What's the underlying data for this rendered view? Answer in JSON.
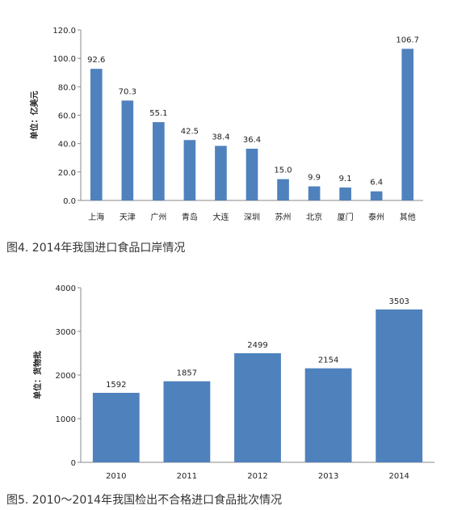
{
  "colors": {
    "bar": "#4f81bd",
    "axis": "#888888",
    "text": "#222222"
  },
  "chart_data": [
    {
      "type": "bar",
      "caption": "图4. 2014年我国进口食品口岸情况",
      "ylabel": "单位：亿美元",
      "ylim": [
        0,
        120
      ],
      "yticks": [
        "0.0",
        "20.0",
        "40.0",
        "60.0",
        "80.0",
        "100.0",
        "120.0"
      ],
      "grid": false,
      "categories": [
        "上海",
        "天津",
        "广州",
        "青岛",
        "大连",
        "深圳",
        "苏州",
        "北京",
        "厦门",
        "泰州",
        "其他"
      ],
      "values": [
        92.6,
        70.3,
        55.1,
        42.5,
        38.4,
        36.4,
        15.0,
        9.9,
        9.1,
        6.4,
        106.7
      ],
      "value_labels": [
        "92.6",
        "70.3",
        "55.1",
        "42.5",
        "38.4",
        "36.4",
        "15.0",
        "9.9",
        "9.1",
        "6.4",
        "106.7"
      ]
    },
    {
      "type": "bar",
      "caption": "图5. 2010～2014年我国检出不合格进口食品批次情况",
      "ylabel": "单位：货物批",
      "ylim": [
        0,
        4000
      ],
      "yticks": [
        "0",
        "1000",
        "2000",
        "3000",
        "4000"
      ],
      "grid": false,
      "categories": [
        "2010",
        "2011",
        "2012",
        "2013",
        "2014"
      ],
      "values": [
        1592,
        1857,
        2499,
        2154,
        3503
      ],
      "value_labels": [
        "1592",
        "1857",
        "2499",
        "2154",
        "3503"
      ]
    }
  ]
}
